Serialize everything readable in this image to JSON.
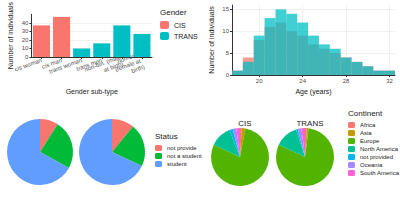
{
  "chart_data": [
    {
      "type": "bar",
      "stacked": true,
      "categories": [
        "cis woman",
        "cis man",
        "trans woman",
        "trans men",
        "non-bin. (male at birth)",
        "non-bin. (female at birth)"
      ],
      "series": [
        {
          "name": "CIS",
          "color": "#F8766D",
          "values": [
            37,
            47,
            null,
            null,
            null,
            null
          ]
        },
        {
          "name": "TRANS",
          "color": "#00BFC4",
          "values": [
            null,
            null,
            10,
            16,
            37,
            27
          ]
        }
      ],
      "x_label": "Gender sub-type",
      "y_label": "Number of individuals",
      "ylim": [
        0,
        50
      ],
      "yticks": [
        0,
        10,
        20,
        30,
        40
      ],
      "grid": true,
      "legend": "right",
      "legend_title": "Gender"
    },
    {
      "type": "histogram",
      "bins": [
        17.5,
        18.5,
        19.5,
        20.5,
        21.5,
        22.5,
        23.5,
        24.5,
        25.5,
        26.5,
        27.5,
        28.5,
        29.5,
        30.5,
        31.5,
        32.5
      ],
      "series": [
        {
          "name": "CIS",
          "color": "#F8766D",
          "values": [
            1,
            4,
            8,
            11,
            12,
            10,
            9,
            7,
            6,
            5,
            4,
            3,
            2,
            1,
            1
          ]
        },
        {
          "name": "TRANS",
          "color": "#00BFC4",
          "values": [
            1,
            3,
            9,
            13,
            15,
            14,
            12,
            9,
            7,
            6,
            4,
            3,
            2,
            1,
            1
          ]
        }
      ],
      "x_label": "Age (years)",
      "y_label": "Number of individuals",
      "xlim": [
        17.5,
        32.5
      ],
      "xticks": [
        20,
        24,
        28,
        32
      ],
      "ylim": [
        0,
        16
      ],
      "yticks": [
        0,
        5,
        10,
        15
      ],
      "grid": true
    },
    {
      "type": "pie",
      "legend": "right",
      "legend_title": "Status",
      "categories": [
        "not provide",
        "not a student",
        "student"
      ],
      "colors": [
        "#F8766D",
        "#00BA38",
        "#619CFF"
      ],
      "series": [
        {
          "values": [
            9,
            24,
            67
          ]
        },
        {
          "values": [
            11,
            21,
            68
          ]
        }
      ]
    },
    {
      "type": "pie",
      "legend": "right",
      "legend_title": "Continent",
      "categories": [
        "Africa",
        "Asia",
        "Europe",
        "North America",
        "not provided",
        "Oceania",
        "South America"
      ],
      "colors": [
        "#F8766D",
        "#C49A00",
        "#53B400",
        "#00C094",
        "#00B6EB",
        "#A58AFF",
        "#FB61D7"
      ],
      "series": [
        {
          "name": "CIS",
          "values": [
            1,
            2,
            79,
            12,
            2,
            2,
            2
          ]
        },
        {
          "name": "TRANS",
          "values": [
            1,
            1,
            80,
            13,
            1,
            2,
            2
          ]
        }
      ]
    }
  ]
}
